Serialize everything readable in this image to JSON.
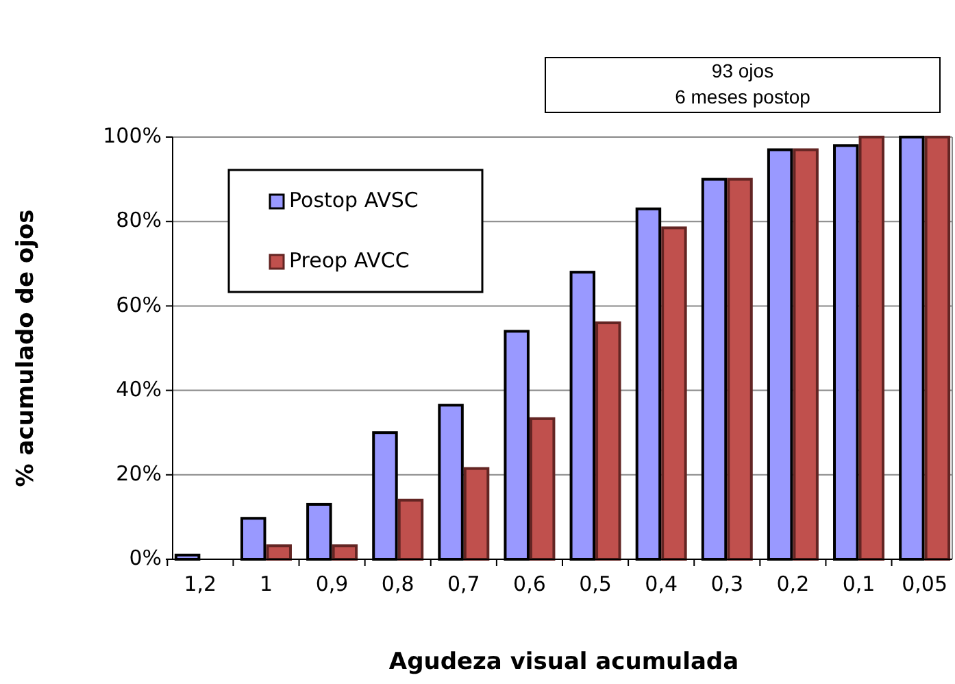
{
  "chart_data": {
    "type": "bar",
    "xlabel": "Agudeza visual acumulada",
    "ylabel": "% acumulado de ojos",
    "annotations": [
      "93 ojos\n6 meses postop"
    ],
    "categories": [
      "1,2",
      "1",
      "0,9",
      "0,8",
      "0,7",
      "0,6",
      "0,5",
      "0,4",
      "0,3",
      "0,2",
      "0,1",
      "0,05"
    ],
    "series": [
      {
        "name": "Postop AVSC",
        "color": "#9999ff",
        "values": [
          1,
          9.7,
          13,
          30,
          36.5,
          54,
          68,
          83,
          90,
          97,
          98,
          100
        ]
      },
      {
        "name": "Preop AVCC",
        "color": "#c0504d",
        "values": [
          0,
          3.2,
          3.2,
          14,
          21.5,
          33.3,
          56,
          78.5,
          90,
          97,
          100,
          100
        ]
      }
    ],
    "ylim": [
      0,
      100
    ],
    "yticks": [
      {
        "value": 0,
        "label": "0%"
      },
      {
        "value": 20,
        "label": "20%"
      },
      {
        "value": 40,
        "label": "40%"
      },
      {
        "value": 60,
        "label": "60%"
      },
      {
        "value": 80,
        "label": "80%"
      },
      {
        "value": 100,
        "label": "100%"
      }
    ],
    "grid": "y",
    "legend": "top left"
  }
}
